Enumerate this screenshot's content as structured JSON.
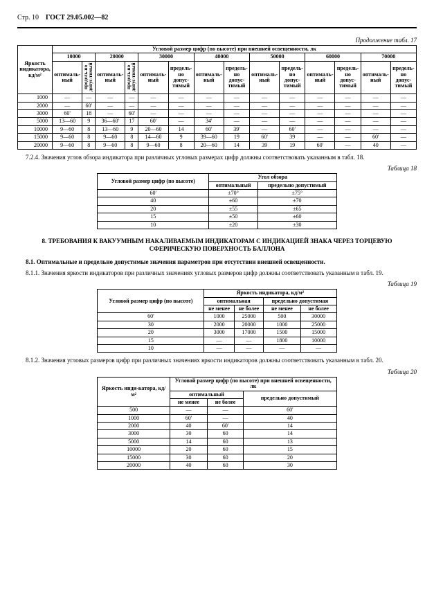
{
  "header": {
    "page": "Стр. 10",
    "std": "ГОСТ 29.05.002—82"
  },
  "t17": {
    "caption": "Продолжение табл. 17",
    "spanHeader": "Угловой размер цифр (по высоте) при внешней освещенности, лк",
    "rowLabel": "Яркость индикатора, кд/м²",
    "levels": [
      "10000",
      "20000",
      "30000",
      "40000",
      "50000",
      "60000",
      "70000"
    ],
    "sub1": "оптималь-ный",
    "sub2": "предель-но допус-тимый",
    "rows": [
      {
        "y": "1000",
        "c": [
          "—",
          "—",
          "—",
          "—",
          "—",
          "—",
          "—",
          "—",
          "—",
          "—",
          "—",
          "—",
          "—",
          "—"
        ]
      },
      {
        "y": "2000",
        "c": [
          "—",
          "60'",
          "—",
          "—",
          "—",
          "—",
          "—",
          "—",
          "—",
          "—",
          "—",
          "—",
          "—",
          "—"
        ]
      },
      {
        "y": "3000",
        "c": [
          "60'",
          "18",
          "—",
          "60'",
          "—",
          "—",
          "—",
          "—",
          "—",
          "—",
          "—",
          "—",
          "—",
          "—"
        ]
      },
      {
        "y": "5000",
        "c": [
          "13—60",
          "9",
          "36—60'",
          "17",
          "60'",
          "—",
          "34'",
          "—",
          "—",
          "—",
          "—",
          "—",
          "—",
          "—"
        ]
      },
      {
        "y": "10000",
        "c": [
          "9—60",
          "8",
          "13—60",
          "9",
          "20—60",
          "14",
          "60'",
          "39'",
          "—",
          "60'",
          "—",
          "—",
          "—",
          "—"
        ]
      },
      {
        "y": "15000",
        "c": [
          "9—60",
          "8",
          "9—60",
          "8",
          "14—60",
          "9",
          "39—60",
          "19",
          "60'",
          "39",
          "—",
          "—",
          "60'",
          "—"
        ]
      },
      {
        "y": "20000",
        "c": [
          "9—60",
          "8",
          "9—60",
          "8",
          "9—60",
          "8",
          "20—60",
          "14",
          "39",
          "19",
          "60'",
          "—",
          "40",
          "—"
        ]
      }
    ]
  },
  "p724": "7.2.4. Значения углов обзора индикатора при различных угловых размерах цифр должны соответствовать указанным в табл. 18.",
  "t18": {
    "caption": "Таблица 18",
    "h1": "Угловой размер цифр (по высоте)",
    "h2": "Угол обзора",
    "c1": "оптимальный",
    "c2": "предельно допустимый",
    "rows": [
      [
        "60'",
        "±70°",
        "±75°"
      ],
      [
        "40",
        "±60",
        "±70"
      ],
      [
        "20",
        "±55",
        "±65"
      ],
      [
        "15",
        "±50",
        "±60"
      ],
      [
        "10",
        "±20",
        "±30"
      ]
    ]
  },
  "section8": "8. ТРЕБОВАНИЯ К ВАКУУМНЫМ НАКАЛИВАЕМЫМ ИНДИКАТОРАМ С ИНДИКАЦИЕЙ ЗНАКА ЧЕРЕЗ ТОРЦЕВУЮ СФЕРИЧЕСКУЮ ПОВЕРХНОСТЬ БАЛЛОНА",
  "p81": "8.1. Оптимальные и предельно допустимые значения параметров при отсутствии внешней освещенности.",
  "p811": "8.1.1. Значения яркости индикаторов при различных значениях угловых размеров цифр должны соответствовать указанным в табл. 19.",
  "t19": {
    "caption": "Таблица 19",
    "h1": "Угловой размер цифр (по высоте)",
    "h2": "Яркость индикатора, кд/м²",
    "c1": "оптимальная",
    "c2": "предельно допустимая",
    "s1": "не менее",
    "s2": "не более",
    "rows": [
      [
        "60'",
        "1000",
        "25000",
        "500",
        "30000"
      ],
      [
        "30",
        "2000",
        "20000",
        "1000",
        "25000"
      ],
      [
        "20",
        "3000",
        "17000",
        "1500",
        "15000"
      ],
      [
        "15",
        "—",
        "—",
        "1800",
        "10000"
      ],
      [
        "10",
        "—",
        "—",
        "—",
        "—"
      ]
    ]
  },
  "p812": "8.1.2. Значения угловых размеров цифр при различных значениях яркости индикаторов должны соответствовать указанным в табл. 20.",
  "t20": {
    "caption": "Таблица 20",
    "h2": "Угловой размер цифр (по высоте) при внешней освещенности, лк",
    "h1": "Яркость инди-катора, кд/м²",
    "c1": "оптимальный",
    "c2": "предельно допустимый",
    "s1": "не менее",
    "s2": "не более",
    "rows": [
      [
        "500",
        "—",
        "—",
        "60'"
      ],
      [
        "1000",
        "60'",
        "—",
        "40"
      ],
      [
        "2000",
        "40",
        "60'",
        "14"
      ],
      [
        "3000",
        "30",
        "60",
        "14"
      ],
      [
        "5000",
        "14",
        "60",
        "13"
      ],
      [
        "10000",
        "20",
        "60",
        "15"
      ],
      [
        "15000",
        "30",
        "60",
        "20"
      ],
      [
        "20000",
        "40",
        "60",
        "30"
      ]
    ]
  }
}
